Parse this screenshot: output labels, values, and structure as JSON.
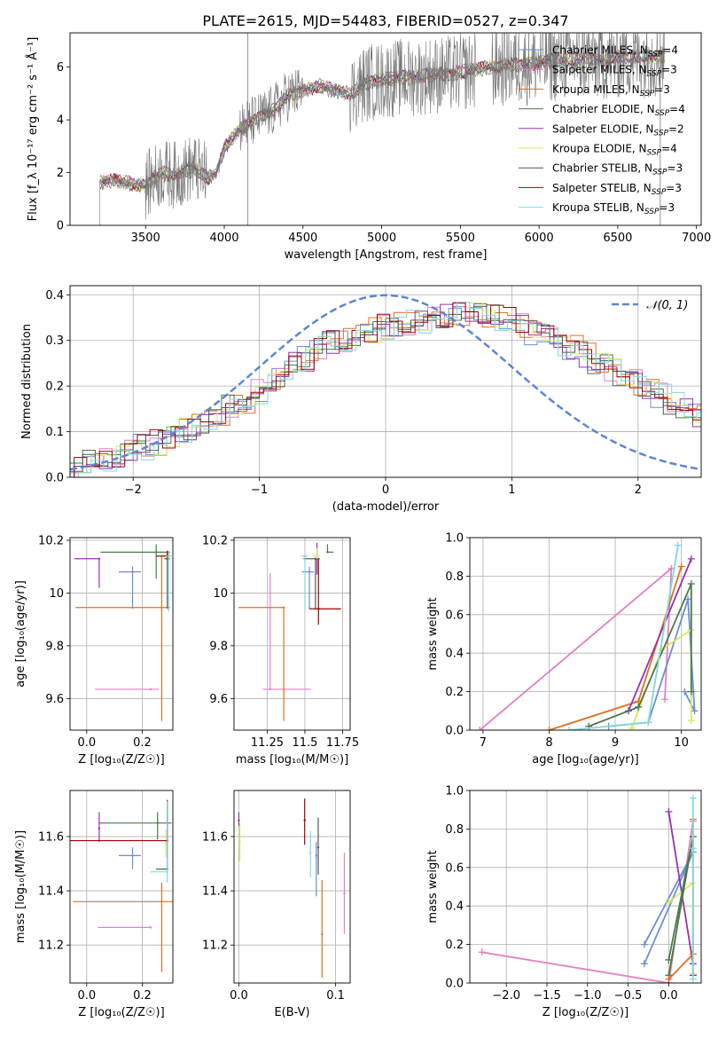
{
  "figure_title": "PLATE=2615, MJD=54483, FIBERID=0527, z=0.347",
  "colors": {
    "chab_miles": "#6b8fd6",
    "salp_miles": "#e57fc0",
    "krou_miles": "#e07020",
    "chab_elodie": "#4a7a4a",
    "salp_elodie": "#9b2fb3",
    "krou_elodie": "#d8e860",
    "chab_stelib": "#555555",
    "salp_stelib": "#a00000",
    "krou_stelib": "#80d8e0",
    "data": "#777777",
    "normal": "#5b86d6",
    "grid": "#b0b0b0"
  },
  "chart_data": [
    {
      "id": "spectrum",
      "type": "line",
      "title": "PLATE=2615, MJD=54483, FIBERID=0527, z=0.347",
      "xlabel": "wavelength [Angstrom, rest frame]",
      "ylabel": "Flux [f_λ 10⁻¹⁷ erg cm⁻² s⁻¹ Å⁻¹]",
      "xlim": [
        3020,
        7030
      ],
      "ylim": [
        0,
        7.3
      ],
      "xticks": [
        3500,
        4000,
        4500,
        5000,
        5500,
        6000,
        6500,
        7000
      ],
      "yticks": [
        0,
        2,
        4,
        6
      ],
      "grid": false,
      "legend_position": "top-right",
      "legend": [
        {
          "label": "Chabrier MILES, N",
          "sub": "SSP",
          "suffix": "=4",
          "color_key": "chab_miles"
        },
        {
          "label": "Salpeter MILES, N",
          "sub": "SSP",
          "suffix": "=3",
          "color_key": "salp_miles"
        },
        {
          "label": "Kroupa MILES, N",
          "sub": "SSP",
          "suffix": "=3",
          "color_key": "krou_miles"
        },
        {
          "label": "Chabrier ELODIE, N",
          "sub": "SSP",
          "suffix": "=4",
          "color_key": "chab_elodie"
        },
        {
          "label": "Salpeter ELODIE, N",
          "sub": "SSP",
          "suffix": "=2",
          "color_key": "salp_elodie"
        },
        {
          "label": "Kroupa ELODIE, N",
          "sub": "SSP",
          "suffix": "=4",
          "color_key": "krou_elodie"
        },
        {
          "label": "Chabrier STELIB, N",
          "sub": "SSP",
          "suffix": "=3",
          "color_key": "chab_stelib"
        },
        {
          "label": "Salpeter STELIB, N",
          "sub": "SSP",
          "suffix": "=3",
          "color_key": "salp_stelib"
        },
        {
          "label": "Kroupa STELIB, N",
          "sub": "SSP",
          "suffix": "=3",
          "color_key": "krou_stelib"
        }
      ],
      "continuum_wavelengths": [
        3210,
        3300,
        3400,
        3500,
        3600,
        3700,
        3800,
        3900,
        3950,
        4000,
        4100,
        4200,
        4300,
        4400,
        4500,
        4600,
        4700,
        4800,
        4900,
        5000,
        5100,
        5200,
        5300,
        5400,
        5500,
        5600,
        5700,
        5800,
        5900,
        6000,
        6200,
        6400,
        6600,
        6800
      ],
      "continuum_flux": [
        1.6,
        1.7,
        1.6,
        1.5,
        2.0,
        1.9,
        2.2,
        1.8,
        2.0,
        2.9,
        3.7,
        4.0,
        4.3,
        4.9,
        5.1,
        5.3,
        5.1,
        5.0,
        5.4,
        5.5,
        5.6,
        5.6,
        5.7,
        5.7,
        5.8,
        5.9,
        6.0,
        6.1,
        6.1,
        6.2,
        6.3,
        6.3,
        6.4,
        6.4
      ],
      "noise_regions": [
        [
          3500,
          3900,
          1.3
        ],
        [
          4100,
          4500,
          1.0
        ],
        [
          4800,
          5600,
          1.5
        ],
        [
          5700,
          6800,
          1.6
        ]
      ],
      "spikes": [
        4150,
        6770
      ]
    },
    {
      "id": "residuals",
      "type": "histogram",
      "xlabel": "(data-model)/error",
      "ylabel": "Normed distribution",
      "xlim": [
        -2.5,
        2.5
      ],
      "ylim": [
        0,
        0.42
      ],
      "xticks": [
        -2,
        -1,
        0,
        1,
        2
      ],
      "yticks": [
        0.0,
        0.1,
        0.2,
        0.3,
        0.4
      ],
      "grid": true,
      "legend_position": "top-right",
      "legend": [
        {
          "label": "𝒩(0, 1)",
          "style": "dashed",
          "color_key": "normal"
        }
      ],
      "bin_width": 0.1,
      "envelope": [
        0.02,
        0.03,
        0.04,
        0.05,
        0.055,
        0.065,
        0.075,
        0.085,
        0.1,
        0.11,
        0.125,
        0.14,
        0.16,
        0.17,
        0.19,
        0.205,
        0.225,
        0.245,
        0.26,
        0.28,
        0.295,
        0.305,
        0.315,
        0.325,
        0.33,
        0.335,
        0.34,
        0.345,
        0.35,
        0.355,
        0.36,
        0.36,
        0.355,
        0.35,
        0.345,
        0.335,
        0.32,
        0.31,
        0.295,
        0.285,
        0.27,
        0.255,
        0.24,
        0.225,
        0.21,
        0.195,
        0.18,
        0.165,
        0.15,
        0.14
      ]
    },
    {
      "id": "z_vs_age",
      "type": "errorbar",
      "xlabel": "Z [log₁₀(Z/Z☉)]",
      "ylabel": "age  [log₁₀(age/yr)]",
      "xlim": [
        -0.06,
        0.31
      ],
      "ylim": [
        9.48,
        10.21
      ],
      "xticks": [
        0.0,
        0.2
      ],
      "yticks": [
        9.6,
        9.8,
        10.0,
        10.2
      ],
      "grid": true,
      "bars": [
        {
          "x": 0.165,
          "xerr": [
            0.05,
            0.03
          ],
          "y": 10.08,
          "yerr": [
            0.14,
            0.02
          ],
          "color_key": "chab_miles"
        },
        {
          "x": 0.23,
          "xerr": [
            0.2,
            0.03
          ],
          "y": 9.635,
          "yerr": [
            0.0,
            0.0
          ],
          "color_key": "salp_miles"
        },
        {
          "x": 0.27,
          "xerr": [
            0.31,
            0.03
          ],
          "y": 9.945,
          "yerr": [
            0.43,
            0.2
          ],
          "color_key": "krou_miles"
        },
        {
          "x": 0.25,
          "xerr": [
            0.2,
            0.05
          ],
          "y": 10.155,
          "yerr": [
            0.1,
            0.03
          ],
          "color_key": "chab_elodie"
        },
        {
          "x": 0.045,
          "xerr": [
            0.09,
            0.0
          ],
          "y": 10.13,
          "yerr": [
            0.11,
            0.0
          ],
          "color_key": "salp_elodie"
        },
        {
          "x": 0.28,
          "xerr": [
            0.01,
            0.01
          ],
          "y": 10.14,
          "yerr": [
            0.01,
            0.01
          ],
          "color_key": "krou_elodie"
        },
        {
          "x": 0.29,
          "xerr": [
            0.01,
            0.01
          ],
          "y": 10.13,
          "yerr": [
            0.19,
            0.03
          ],
          "color_key": "chab_stelib"
        },
        {
          "x": 0.29,
          "xerr": [
            0.04,
            0.01
          ],
          "y": 10.14,
          "yerr": [
            0.0,
            0.02
          ],
          "color_key": "salp_stelib"
        },
        {
          "x": 0.295,
          "xerr": [
            0.01,
            0.01
          ],
          "y": 10.14,
          "yerr": [
            0.21,
            0.02
          ],
          "color_key": "krou_stelib"
        }
      ]
    },
    {
      "id": "mass_vs_age",
      "type": "errorbar",
      "xlabel": "mass [log₁₀(M/M☉)]",
      "ylabel": "",
      "xlim": [
        11.03,
        11.8
      ],
      "ylim": [
        9.48,
        10.21
      ],
      "xticks": [
        11.25,
        11.5,
        11.75
      ],
      "yticks": [
        9.6,
        9.8,
        10.0,
        10.2
      ],
      "grid": true,
      "bars": [
        {
          "x": 11.53,
          "xerr": [
            0.05,
            0.03
          ],
          "y": 10.08,
          "yerr": [
            0.14,
            0.02
          ],
          "color_key": "chab_miles"
        },
        {
          "x": 11.27,
          "xerr": [
            0.05,
            0.27
          ],
          "y": 9.635,
          "yerr": [
            0.0,
            0.44
          ],
          "color_key": "salp_miles"
        },
        {
          "x": 11.36,
          "xerr": [
            0.3,
            0.0
          ],
          "y": 9.945,
          "yerr": [
            0.43,
            0.0
          ],
          "color_key": "krou_miles"
        },
        {
          "x": 11.65,
          "xerr": [
            0.0,
            0.04
          ],
          "y": 10.155,
          "yerr": [
            0.0,
            0.03
          ],
          "color_key": "chab_elodie"
        },
        {
          "x": 11.58,
          "xerr": [
            0.0,
            0.02
          ],
          "y": 10.13,
          "yerr": [
            0.06,
            0.06
          ],
          "color_key": "salp_elodie"
        },
        {
          "x": 11.58,
          "xerr": [
            0.03,
            0.02
          ],
          "y": 10.14,
          "yerr": [
            0.01,
            0.03
          ],
          "color_key": "krou_elodie"
        },
        {
          "x": 11.57,
          "xerr": [
            0.08,
            0.0
          ],
          "y": 10.13,
          "yerr": [
            0.19,
            0.0
          ],
          "color_key": "chab_stelib"
        },
        {
          "x": 11.59,
          "xerr": [
            0.06,
            0.15
          ],
          "y": 9.94,
          "yerr": [
            0.06,
            0.19
          ],
          "color_key": "salp_stelib"
        },
        {
          "x": 11.5,
          "xerr": [
            0.02,
            0.02
          ],
          "y": 10.14,
          "yerr": [
            0.2,
            0.0
          ],
          "color_key": "krou_stelib"
        }
      ]
    },
    {
      "id": "age_vs_weight",
      "type": "line",
      "xlabel": "age  [log₁₀(age/yr)]",
      "ylabel": "mass weight",
      "xlim": [
        6.8,
        10.3
      ],
      "ylim": [
        0,
        1.0
      ],
      "xticks": [
        7,
        8,
        9,
        10
      ],
      "yticks": [
        0.0,
        0.2,
        0.4,
        0.6,
        0.8,
        1.0
      ],
      "grid": true,
      "series": [
        {
          "color_key": "salp_miles",
          "x": [
            6.95,
            9.85,
            9.75
          ],
          "y": [
            0.0,
            0.84,
            0.16
          ]
        },
        {
          "color_key": "krou_miles",
          "x": [
            8.0,
            9.35,
            10.0
          ],
          "y": [
            0.0,
            0.15,
            0.85
          ]
        },
        {
          "color_key": "chab_miles",
          "x": [
            8.9,
            9.5,
            10.1,
            10.2,
            10.05
          ],
          "y": [
            0.02,
            0.04,
            0.68,
            0.1,
            0.2
          ]
        },
        {
          "color_key": "salp_elodie",
          "x": [
            9.2,
            10.15
          ],
          "y": [
            0.1,
            0.89
          ]
        },
        {
          "color_key": "krou_elodie",
          "x": [
            9.25,
            9.7,
            10.15,
            10.15
          ],
          "y": [
            0.01,
            0.42,
            0.52,
            0.05
          ]
        },
        {
          "color_key": "chab_elodie",
          "x": [
            8.6,
            9.35,
            10.15,
            10.15
          ],
          "y": [
            0.02,
            0.12,
            0.76,
            0.2
          ]
        },
        {
          "color_key": "krou_stelib",
          "x": [
            8.3,
            9.5,
            9.95
          ],
          "y": [
            0.0,
            0.04,
            0.96
          ]
        }
      ]
    },
    {
      "id": "z_vs_mass",
      "type": "errorbar",
      "xlabel": "Z [log₁₀(Z/Z☉)]",
      "ylabel": "mass [log₁₀(M/M☉)]",
      "xlim": [
        -0.06,
        0.31
      ],
      "ylim": [
        11.06,
        11.77
      ],
      "xticks": [
        0.0,
        0.2
      ],
      "yticks": [
        11.2,
        11.4,
        11.6
      ],
      "grid": true,
      "bars": [
        {
          "x": 0.165,
          "xerr": [
            0.05,
            0.03
          ],
          "y": 11.53,
          "yerr": [
            0.05,
            0.03
          ],
          "color_key": "chab_miles"
        },
        {
          "x": 0.23,
          "xerr": [
            0.19,
            0.0
          ],
          "y": 11.265,
          "yerr": [
            0.0,
            0.0
          ],
          "color_key": "salp_miles"
        },
        {
          "x": 0.27,
          "xerr": [
            0.32,
            0.04
          ],
          "y": 11.36,
          "yerr": [
            0.26,
            0.07
          ],
          "color_key": "krou_miles"
        },
        {
          "x": 0.255,
          "xerr": [
            0.21,
            0.05
          ],
          "y": 11.65,
          "yerr": [
            0.06,
            0.04
          ],
          "color_key": "chab_elodie"
        },
        {
          "x": 0.045,
          "xerr": [
            0.0,
            0.0
          ],
          "y": 11.63,
          "yerr": [
            0.05,
            0.06
          ],
          "color_key": "salp_elodie"
        },
        {
          "x": 0.285,
          "xerr": [
            0.0,
            0.0
          ],
          "y": 11.575,
          "yerr": [
            0.05,
            0.05
          ],
          "color_key": "krou_elodie"
        },
        {
          "x": 0.29,
          "xerr": [
            0.04,
            0.0
          ],
          "y": 11.48,
          "yerr": [
            0.0,
            0.2
          ],
          "color_key": "chab_stelib"
        },
        {
          "x": 0.29,
          "xerr": [
            0.35,
            0.0
          ],
          "y": 11.585,
          "yerr": [
            0.0,
            0.15
          ],
          "color_key": "salp_stelib"
        },
        {
          "x": 0.29,
          "xerr": [
            0.06,
            0.0
          ],
          "y": 11.47,
          "yerr": [
            0.04,
            0.26
          ],
          "color_key": "krou_stelib"
        }
      ]
    },
    {
      "id": "ebv_vs_mass",
      "type": "errorbar",
      "xlabel": "E(B-V)",
      "ylabel": "",
      "xlim": [
        -0.005,
        0.115
      ],
      "ylim": [
        11.06,
        11.77
      ],
      "xticks": [
        0.0,
        0.1
      ],
      "yticks": [
        11.2,
        11.4,
        11.6
      ],
      "grid": true,
      "bars": [
        {
          "x": 0.08,
          "xerr": [
            0,
            0
          ],
          "y": 11.53,
          "yerr": [
            0.15,
            0.05
          ],
          "color_key": "chab_miles"
        },
        {
          "x": 0.109,
          "xerr": [
            0,
            0
          ],
          "y": 11.39,
          "yerr": [
            0.15,
            0.15
          ],
          "color_key": "salp_miles"
        },
        {
          "x": 0.086,
          "xerr": [
            0,
            0
          ],
          "y": 11.24,
          "yerr": [
            0.16,
            0.2
          ],
          "color_key": "krou_miles"
        },
        {
          "x": 0.0,
          "xerr": [
            0,
            0
          ],
          "y": 11.66,
          "yerr": [
            0.02,
            0.03
          ],
          "color_key": "salp_elodie"
        },
        {
          "x": 0.001,
          "xerr": [
            0,
            0
          ],
          "y": 11.58,
          "yerr": [
            0.07,
            0.07
          ],
          "color_key": "krou_elodie"
        },
        {
          "x": 0.082,
          "xerr": [
            0,
            0
          ],
          "y": 11.56,
          "yerr": [
            0.1,
            0.11
          ],
          "color_key": "chab_stelib"
        },
        {
          "x": 0.068,
          "xerr": [
            0,
            0
          ],
          "y": 11.66,
          "yerr": [
            0.09,
            0.08
          ],
          "color_key": "salp_stelib"
        },
        {
          "x": 0.074,
          "xerr": [
            0,
            0
          ],
          "y": 11.54,
          "yerr": [
            0.09,
            0.08
          ],
          "color_key": "krou_stelib"
        }
      ]
    },
    {
      "id": "z_vs_weight",
      "type": "line",
      "xlabel": "Z [log₁₀(Z/Z☉)]",
      "ylabel": "mass weight",
      "xlim": [
        -2.45,
        0.4
      ],
      "ylim": [
        0,
        1.0
      ],
      "xticks": [
        -2.0,
        -1.5,
        -1.0,
        -0.5,
        0.0
      ],
      "yticks": [
        0.0,
        0.2,
        0.4,
        0.6,
        0.8,
        1.0
      ],
      "grid": true,
      "series": [
        {
          "color_key": "salp_miles",
          "x": [
            -2.3,
            0.0,
            0.3
          ],
          "y": [
            0.16,
            0.0,
            0.84
          ]
        },
        {
          "color_key": "chab_miles",
          "x": [
            -0.3,
            0.3,
            -0.3
          ],
          "y": [
            0.1,
            0.68,
            0.2
          ]
        },
        {
          "color_key": "salp_elodie",
          "x": [
            0.0,
            0.3,
            0.3
          ],
          "y": [
            0.89,
            0.1,
            0.04
          ]
        },
        {
          "color_key": "krou_elodie",
          "x": [
            0.0,
            0.3,
            0.3
          ],
          "y": [
            0.42,
            0.52,
            0.05
          ]
        },
        {
          "color_key": "chab_elodie",
          "x": [
            0.0,
            0.3,
            0.0
          ],
          "y": [
            0.12,
            0.76,
            0.04
          ]
        },
        {
          "color_key": "krou_miles",
          "x": [
            0.3,
            0.3,
            0.0
          ],
          "y": [
            0.85,
            0.15,
            0.02
          ]
        },
        {
          "color_key": "krou_stelib",
          "x": [
            0.3,
            0.3,
            0.3
          ],
          "y": [
            0.96,
            0.02,
            0.7
          ]
        }
      ]
    }
  ]
}
